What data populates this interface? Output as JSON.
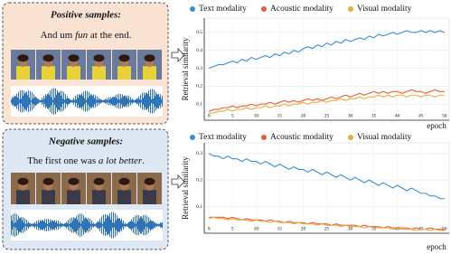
{
  "samples": [
    {
      "heading": "Positive samples:",
      "text_parts": [
        "And um ",
        "fun",
        " at the end."
      ]
    },
    {
      "heading": "Negative samples:",
      "text_parts": [
        "The first one was ",
        "a lot better",
        "."
      ]
    }
  ],
  "chart_data": [
    {
      "type": "line",
      "x_label": "epoch",
      "y_label": "Retrieval similarity",
      "x": [
        0,
        1,
        2,
        3,
        4,
        5,
        6,
        7,
        8,
        9,
        10,
        11,
        12,
        13,
        14,
        15,
        16,
        17,
        18,
        19,
        20,
        21,
        22,
        23,
        24,
        25,
        26,
        27,
        28,
        29,
        30,
        31,
        32,
        33,
        34,
        35,
        36,
        37,
        38,
        39,
        40,
        41,
        42,
        43,
        44,
        45,
        46,
        47,
        48,
        49,
        50
      ],
      "xlim": [
        -1,
        51
      ],
      "xticks": [
        0,
        5,
        10,
        15,
        20,
        25,
        30,
        35,
        40,
        45,
        50
      ],
      "ylim": [
        0.01,
        0.58
      ],
      "yticks": [
        0.1,
        0.2,
        0.3,
        0.4,
        0.5
      ],
      "grid": true,
      "series": [
        {
          "name": "Text modality",
          "color": "#3a8fd0",
          "values": [
            0.3,
            0.31,
            0.32,
            0.32,
            0.33,
            0.34,
            0.33,
            0.35,
            0.34,
            0.36,
            0.35,
            0.36,
            0.37,
            0.36,
            0.38,
            0.37,
            0.39,
            0.38,
            0.4,
            0.39,
            0.41,
            0.42,
            0.41,
            0.43,
            0.42,
            0.44,
            0.43,
            0.45,
            0.44,
            0.46,
            0.45,
            0.46,
            0.47,
            0.46,
            0.48,
            0.47,
            0.49,
            0.48,
            0.49,
            0.5,
            0.49,
            0.5,
            0.51,
            0.5,
            0.5,
            0.51,
            0.5,
            0.51,
            0.5,
            0.51,
            0.5
          ]
        },
        {
          "name": "Acoustic modality",
          "color": "#ee5a3a",
          "values": [
            0.06,
            0.07,
            0.07,
            0.08,
            0.08,
            0.09,
            0.08,
            0.09,
            0.09,
            0.1,
            0.09,
            0.1,
            0.1,
            0.11,
            0.1,
            0.11,
            0.12,
            0.11,
            0.12,
            0.11,
            0.12,
            0.13,
            0.12,
            0.13,
            0.12,
            0.13,
            0.14,
            0.13,
            0.14,
            0.15,
            0.14,
            0.15,
            0.16,
            0.15,
            0.16,
            0.17,
            0.16,
            0.17,
            0.16,
            0.17,
            0.17,
            0.16,
            0.17,
            0.18,
            0.17,
            0.17,
            0.16,
            0.17,
            0.18,
            0.17,
            0.17
          ]
        },
        {
          "name": "Visual modality",
          "color": "#e6ac3c",
          "values": [
            0.05,
            0.05,
            0.06,
            0.06,
            0.07,
            0.06,
            0.07,
            0.07,
            0.08,
            0.07,
            0.08,
            0.08,
            0.09,
            0.08,
            0.09,
            0.09,
            0.1,
            0.09,
            0.1,
            0.1,
            0.11,
            0.1,
            0.11,
            0.11,
            0.12,
            0.11,
            0.12,
            0.12,
            0.13,
            0.12,
            0.13,
            0.13,
            0.14,
            0.13,
            0.14,
            0.14,
            0.15,
            0.14,
            0.15,
            0.14,
            0.15,
            0.15,
            0.14,
            0.15,
            0.15,
            0.14,
            0.15,
            0.15,
            0.14,
            0.15,
            0.15
          ]
        }
      ]
    },
    {
      "type": "line",
      "x_label": "epoch",
      "y_label": "Retrieval similarity",
      "x": [
        0,
        1,
        2,
        3,
        4,
        5,
        6,
        7,
        8,
        9,
        10,
        11,
        12,
        13,
        14,
        15,
        16,
        17,
        18,
        19,
        20,
        21,
        22,
        23,
        24,
        25,
        26,
        27,
        28,
        29,
        30,
        31,
        32,
        33,
        34,
        35,
        36,
        37,
        38,
        39,
        40,
        41,
        42,
        43,
        44,
        45,
        46,
        47,
        48,
        49,
        50
      ],
      "xlim": [
        -1,
        51
      ],
      "xticks": [
        0,
        5,
        10,
        15,
        20,
        25,
        30,
        35,
        40,
        45,
        50
      ],
      "ylim": [
        0.0,
        0.34
      ],
      "yticks": [
        0.1,
        0.2,
        0.3
      ],
      "grid": true,
      "series": [
        {
          "name": "Text modality",
          "color": "#3a8fd0",
          "values": [
            0.3,
            0.29,
            0.29,
            0.28,
            0.29,
            0.28,
            0.28,
            0.27,
            0.28,
            0.27,
            0.27,
            0.26,
            0.27,
            0.26,
            0.25,
            0.26,
            0.25,
            0.24,
            0.25,
            0.24,
            0.24,
            0.23,
            0.24,
            0.23,
            0.22,
            0.23,
            0.22,
            0.21,
            0.22,
            0.21,
            0.2,
            0.21,
            0.2,
            0.19,
            0.2,
            0.19,
            0.18,
            0.19,
            0.18,
            0.17,
            0.18,
            0.17,
            0.16,
            0.17,
            0.16,
            0.15,
            0.15,
            0.14,
            0.14,
            0.13,
            0.13
          ]
        },
        {
          "name": "Acoustic modality",
          "color": "#ee5a3a",
          "values": [
            0.06,
            0.06,
            0.06,
            0.06,
            0.055,
            0.06,
            0.055,
            0.05,
            0.055,
            0.05,
            0.05,
            0.05,
            0.045,
            0.05,
            0.045,
            0.045,
            0.04,
            0.045,
            0.04,
            0.04,
            0.04,
            0.035,
            0.04,
            0.035,
            0.035,
            0.035,
            0.03,
            0.035,
            0.03,
            0.03,
            0.03,
            0.03,
            0.025,
            0.03,
            0.025,
            0.025,
            0.025,
            0.02,
            0.025,
            0.02,
            0.02,
            0.02,
            0.02,
            0.015,
            0.02,
            0.015,
            0.015,
            0.02,
            0.015,
            0.015,
            0.015
          ]
        },
        {
          "name": "Visual modality",
          "color": "#e6ac3c",
          "values": [
            0.055,
            0.06,
            0.055,
            0.055,
            0.05,
            0.055,
            0.05,
            0.05,
            0.05,
            0.045,
            0.05,
            0.045,
            0.045,
            0.04,
            0.045,
            0.04,
            0.04,
            0.04,
            0.035,
            0.04,
            0.035,
            0.035,
            0.035,
            0.03,
            0.035,
            0.03,
            0.03,
            0.03,
            0.025,
            0.03,
            0.025,
            0.025,
            0.025,
            0.02,
            0.025,
            0.02,
            0.02,
            0.02,
            0.02,
            0.015,
            0.02,
            0.015,
            0.015,
            0.015,
            0.01,
            0.015,
            0.015,
            0.01,
            0.015,
            0.01,
            0.01
          ]
        }
      ]
    }
  ]
}
